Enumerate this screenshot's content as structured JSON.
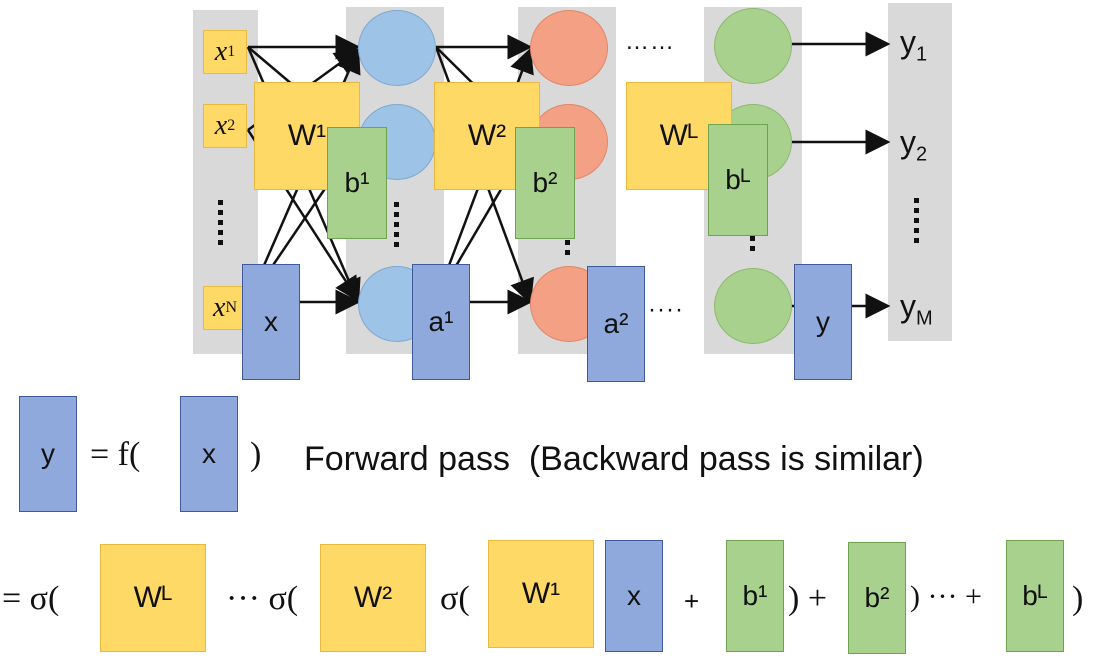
{
  "network": {
    "inputs": [
      {
        "var": "x",
        "sub": "1"
      },
      {
        "var": "x",
        "sub": "2"
      },
      {
        "var": "x",
        "sub": "N"
      }
    ],
    "outputs": [
      {
        "var": "y",
        "sub": "1"
      },
      {
        "var": "y",
        "sub": "2"
      },
      {
        "var": "y",
        "sub": "M"
      }
    ],
    "weights": {
      "w1": "W¹",
      "w2": "W²",
      "wL": "Wᴸ"
    },
    "biases": {
      "b1": "b¹",
      "b2": "b²",
      "bL": "bᴸ"
    },
    "vectors": {
      "x": "x",
      "a1": "a¹",
      "a2": "a²",
      "y": "y"
    },
    "hdots": "……",
    "hdots_short": "····",
    "layer_colors": {
      "layer1": "#9dc3e6",
      "layer2": "#f4a084",
      "layerL": "#a9d18e"
    }
  },
  "equation1": {
    "lhs": "y",
    "eq": "= f(",
    "arg": "x",
    "close": ")",
    "caption": "Forward pass  (Backward pass is similar)"
  },
  "equation2": {
    "start": "= σ(",
    "wL": "Wᴸ",
    "mid1": "··· σ(",
    "w2": "W²",
    "sig": "σ(",
    "w1": "W¹",
    "x": "x",
    "plus1": "+",
    "b1": "b¹",
    "close1": ") +",
    "b2": "b²",
    "close2": ") ··· +",
    "bL": "bᴸ",
    "close3": ")"
  }
}
